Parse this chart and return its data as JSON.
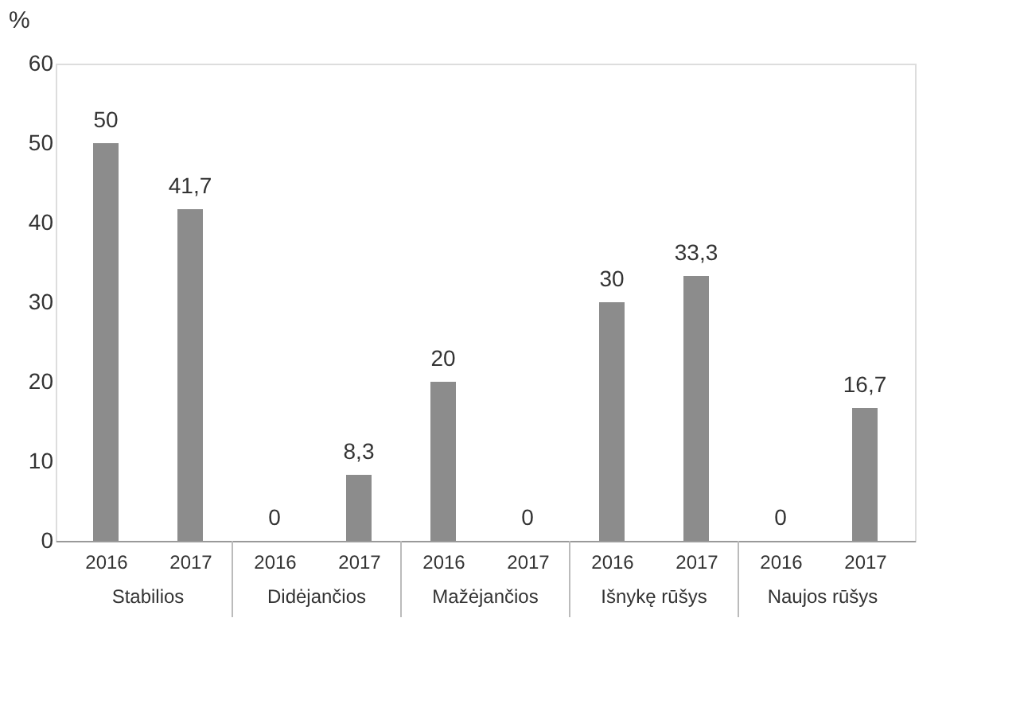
{
  "chart_data": {
    "type": "bar",
    "ylabel": "%",
    "categories": [
      "2016",
      "2017",
      "2016",
      "2017",
      "2016",
      "2017",
      "2016",
      "2017",
      "2016",
      "2017"
    ],
    "values": [
      50,
      41.7,
      0,
      8.3,
      20,
      0,
      30,
      33.3,
      0,
      16.7
    ],
    "value_labels": [
      "50",
      "41,7",
      "0",
      "8,3",
      "20",
      "0",
      "30",
      "33,3",
      "0",
      "16,7"
    ],
    "color": "#8c8c8c",
    "grid": false,
    "ylim": [
      0,
      60
    ],
    "yticks": [
      0,
      10,
      20,
      30,
      40,
      50,
      60
    ],
    "annotations": [
      "Stabilios",
      "Didėjančios",
      "Mažėjančios",
      "Išnykę rūšys",
      "Naujos rūšys"
    ]
  }
}
